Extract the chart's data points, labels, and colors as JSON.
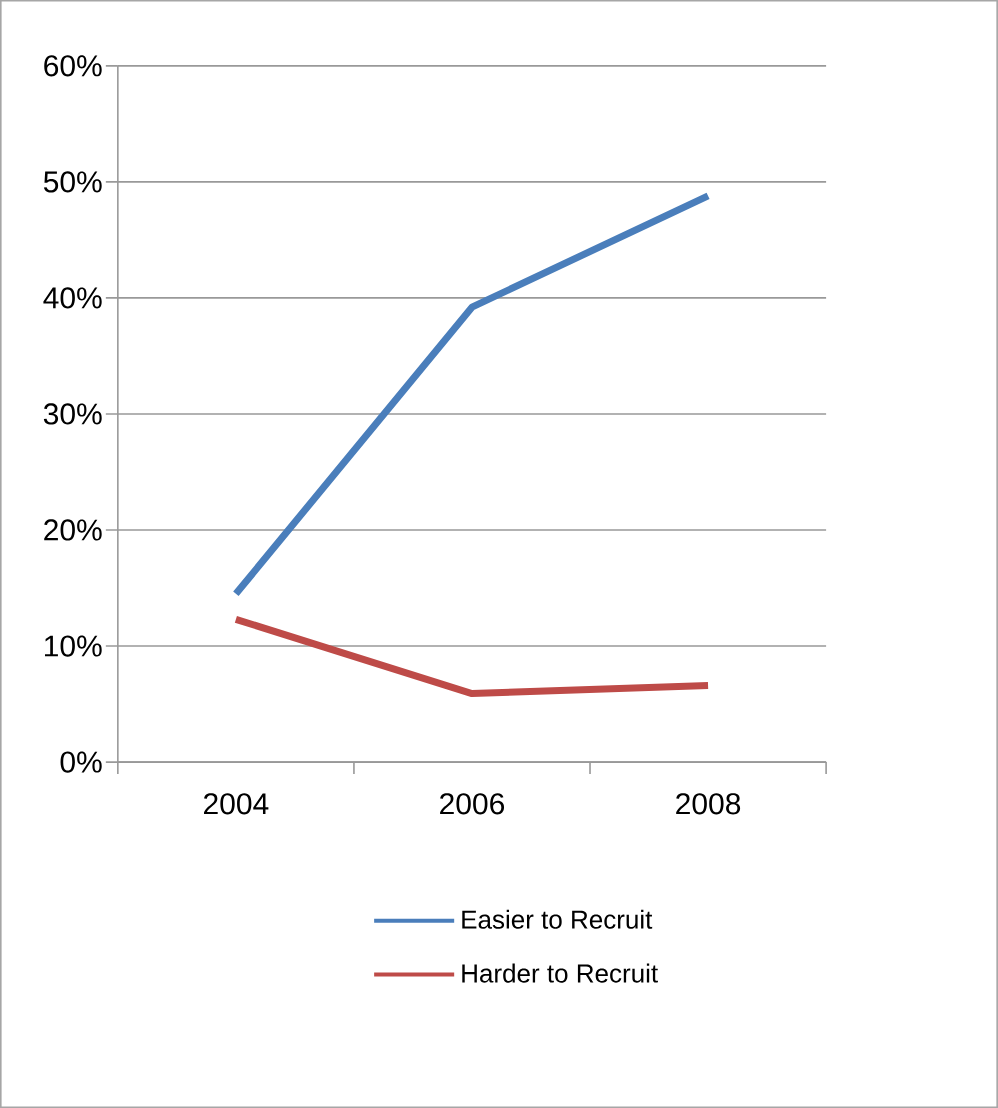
{
  "chart_data": {
    "type": "line",
    "categories": [
      "2004",
      "2006",
      "2008"
    ],
    "series": [
      {
        "name": "Easier to Recruit",
        "color": "#4a7ebb",
        "values": [
          14.5,
          39.2,
          48.8
        ]
      },
      {
        "name": "Harder to Recruit",
        "color": "#be4b48",
        "values": [
          12.3,
          5.9,
          6.6
        ]
      }
    ],
    "ylim": [
      0,
      60
    ],
    "yticks": [
      {
        "value": 0,
        "label": "0%"
      },
      {
        "value": 10,
        "label": "10%"
      },
      {
        "value": 20,
        "label": "20%"
      },
      {
        "value": 30,
        "label": "30%"
      },
      {
        "value": 40,
        "label": "40%"
      },
      {
        "value": 50,
        "label": "50%"
      },
      {
        "value": 60,
        "label": "60%"
      }
    ],
    "grid": "y",
    "legend": "bottom",
    "marker": "none",
    "line_style": "solid"
  }
}
